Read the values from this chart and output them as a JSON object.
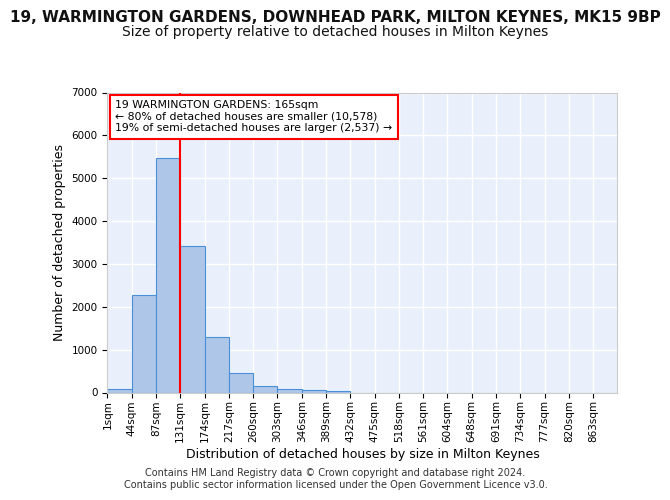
{
  "title": "19, WARMINGTON GARDENS, DOWNHEAD PARK, MILTON KEYNES, MK15 9BP",
  "subtitle": "Size of property relative to detached houses in Milton Keynes",
  "xlabel": "Distribution of detached houses by size in Milton Keynes",
  "ylabel": "Number of detached properties",
  "footer_line1": "Contains HM Land Registry data © Crown copyright and database right 2024.",
  "footer_line2": "Contains public sector information licensed under the Open Government Licence v3.0.",
  "bin_labels": [
    "1sqm",
    "44sqm",
    "87sqm",
    "131sqm",
    "174sqm",
    "217sqm",
    "260sqm",
    "303sqm",
    "346sqm",
    "389sqm",
    "432sqm",
    "475sqm",
    "518sqm",
    "561sqm",
    "604sqm",
    "648sqm",
    "691sqm",
    "734sqm",
    "777sqm",
    "820sqm",
    "863sqm"
  ],
  "bar_values": [
    75,
    2270,
    5480,
    3430,
    1300,
    460,
    160,
    90,
    60,
    40,
    0,
    0,
    0,
    0,
    0,
    0,
    0,
    0,
    0,
    0,
    0
  ],
  "bar_color": "#aec6e8",
  "bar_edge_color": "#4a90d9",
  "annotation_line1": "19 WARMINGTON GARDENS: 165sqm",
  "annotation_line2": "← 80% of detached houses are smaller (10,578)",
  "annotation_line3": "19% of semi-detached houses are larger (2,537) →",
  "red_line_x": 3.0,
  "ylim": [
    0,
    7000
  ],
  "yticks": [
    0,
    1000,
    2000,
    3000,
    4000,
    5000,
    6000,
    7000
  ],
  "background_color": "#eaf0fb",
  "grid_color": "#ffffff",
  "title_fontsize": 11,
  "subtitle_fontsize": 10,
  "axis_label_fontsize": 9,
  "tick_fontsize": 7.5,
  "footer_fontsize": 7
}
